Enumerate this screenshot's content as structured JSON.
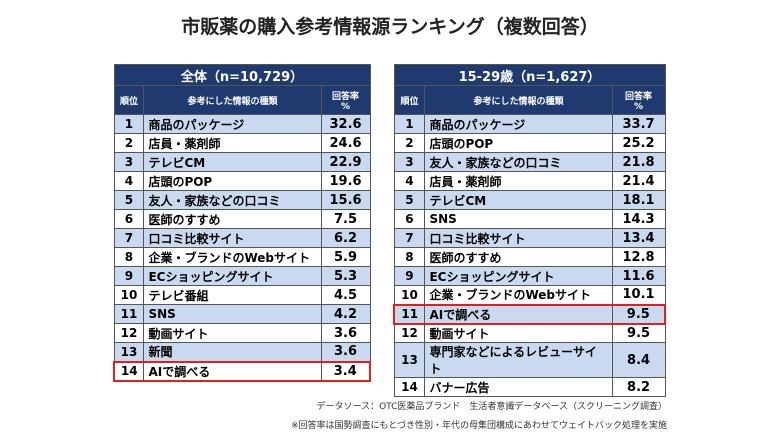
{
  "title": "市販薬の購入参考情報源ランキング（複数回答）",
  "columns": {
    "rank": "順位",
    "item": "参考にした情報の種類",
    "rate": "回答率",
    "unit": "%"
  },
  "tables": [
    {
      "caption": "全体（n=10,729）",
      "highlight_rank": 14,
      "rows": [
        [
          "1",
          "商品のパッケージ",
          "32.6"
        ],
        [
          "2",
          "店員・薬剤師",
          "24.6"
        ],
        [
          "3",
          "テレビCM",
          "22.9"
        ],
        [
          "4",
          "店頭のPOP",
          "19.6"
        ],
        [
          "5",
          "友人・家族などの口コミ",
          "15.6"
        ],
        [
          "6",
          "医師のすすめ",
          "7.5"
        ],
        [
          "7",
          "口コミ比較サイト",
          "6.2"
        ],
        [
          "8",
          "企業・ブランドのWebサイト",
          "5.9"
        ],
        [
          "9",
          "ECショッピングサイト",
          "5.3"
        ],
        [
          "10",
          "テレビ番組",
          "4.5"
        ],
        [
          "11",
          "SNS",
          "4.2"
        ],
        [
          "12",
          "動画サイト",
          "3.6"
        ],
        [
          "13",
          "新聞",
          "3.6"
        ],
        [
          "14",
          "AIで調べる",
          "3.4"
        ]
      ]
    },
    {
      "caption": "15-29歳（n=1,627）",
      "highlight_rank": 11,
      "rows": [
        [
          "1",
          "商品のパッケージ",
          "33.7"
        ],
        [
          "2",
          "店頭のPOP",
          "25.2"
        ],
        [
          "3",
          "友人・家族などの口コミ",
          "21.8"
        ],
        [
          "4",
          "店員・薬剤師",
          "21.4"
        ],
        [
          "5",
          "テレビCM",
          "18.1"
        ],
        [
          "6",
          "SNS",
          "14.3"
        ],
        [
          "7",
          "口コミ比較サイト",
          "13.4"
        ],
        [
          "8",
          "医師のすすめ",
          "12.8"
        ],
        [
          "9",
          "ECショッピングサイト",
          "11.6"
        ],
        [
          "10",
          "企業・ブランドのWebサイト",
          "10.1"
        ],
        [
          "11",
          "AIで調べる",
          "9.5"
        ],
        [
          "12",
          "動画サイト",
          "9.5"
        ],
        [
          "13",
          "専門家などによるレビューサイト",
          "8.4"
        ],
        [
          "14",
          "バナー広告",
          "8.2"
        ]
      ]
    }
  ],
  "source": "データソース：OTC医薬品ブランド　生活者意識データベース（スクリーニング調査）",
  "note": "※回答率は国勢調査にもとづき性別・年代の母集団構成にあわせてウェイトバック処理を実施",
  "colors": {
    "header": "#1f3a6e",
    "row_alt": "#c9daf0",
    "highlight": "#e02020"
  }
}
